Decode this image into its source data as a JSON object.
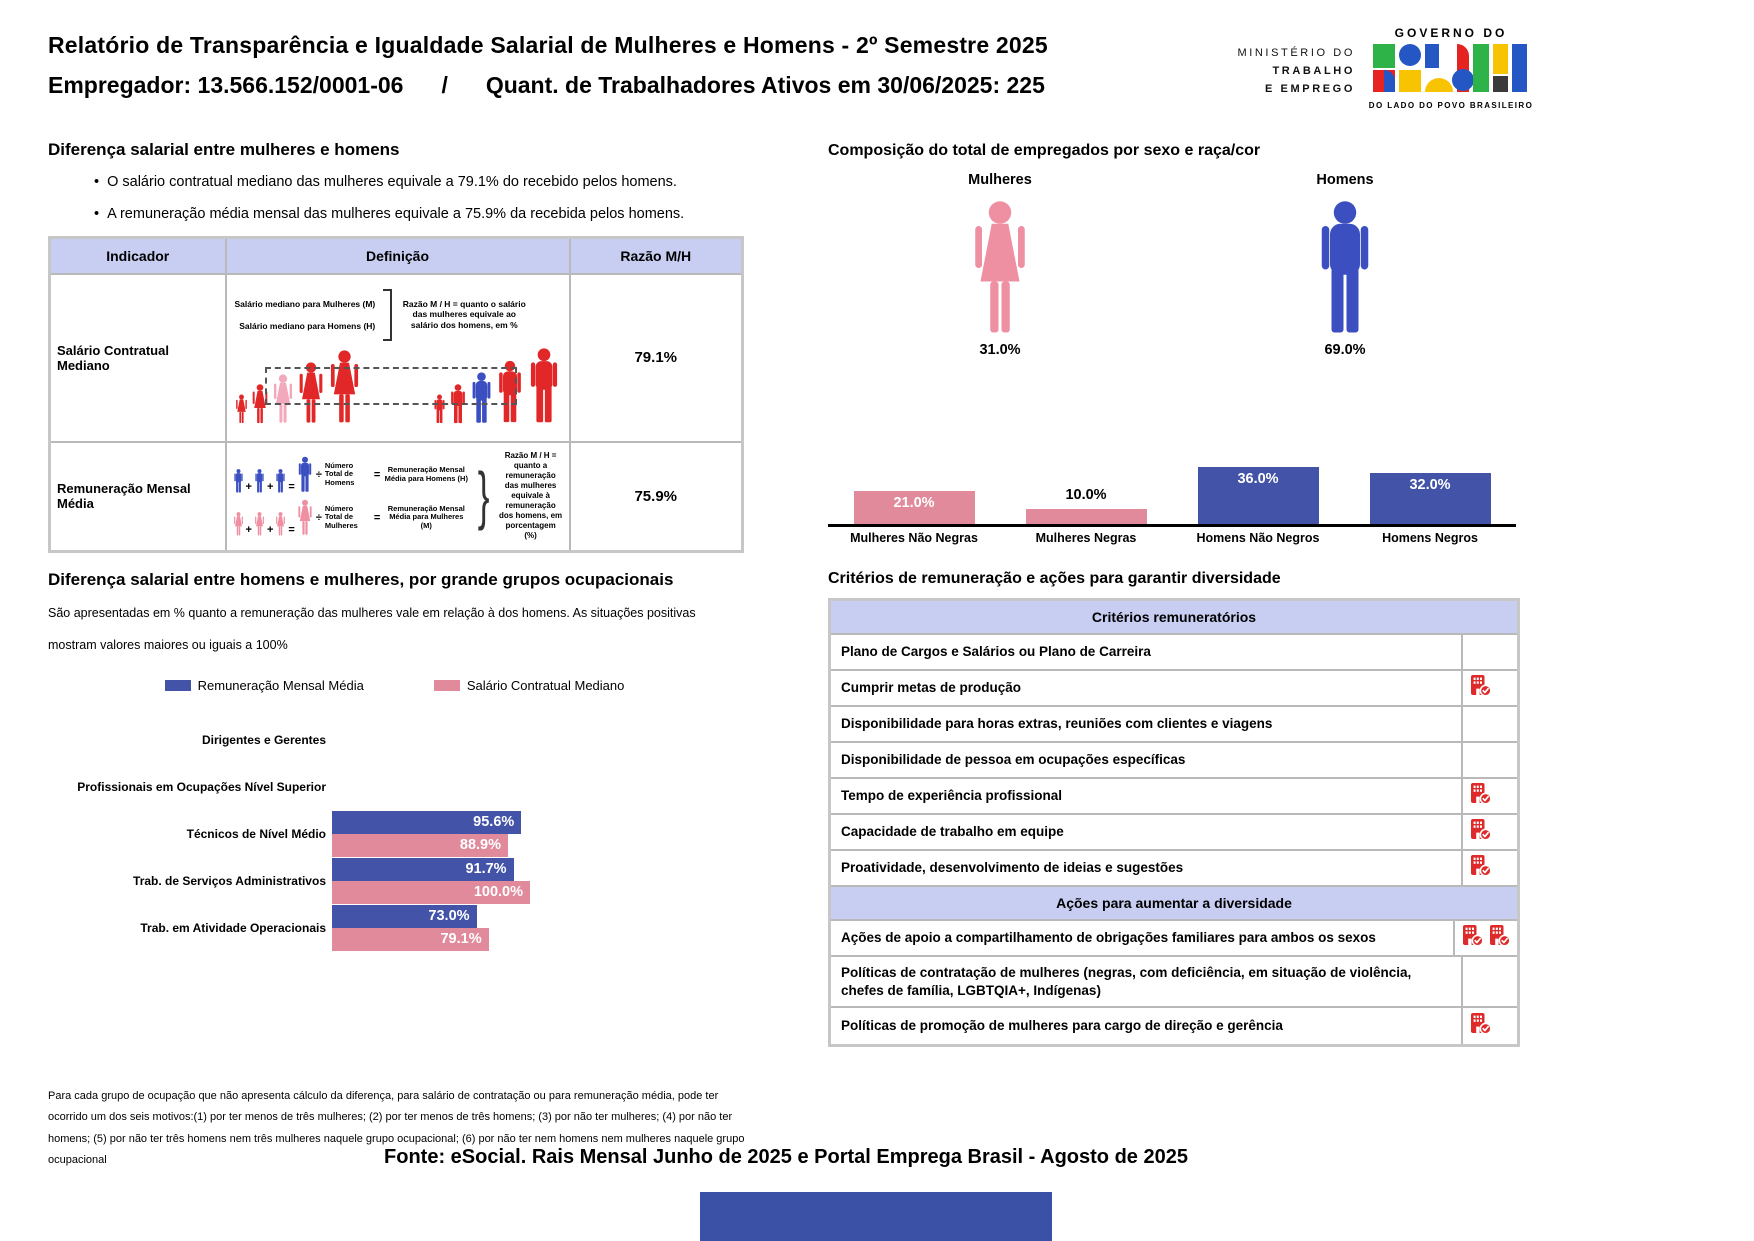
{
  "header": {
    "title": "Relatório de Transparência e Igualdade Salarial de Mulheres e Homens - 2º Semestre 2025",
    "employer": "Empregador: 13.566.152/0001-06",
    "separator": "/",
    "active_workers": "Quant. de Trabalhadores Ativos em 30/06/2025: 225",
    "ministry_line1": "MINISTÉRIO DO",
    "ministry_line2": "TRABALHO",
    "ministry_line3": "E EMPREGO",
    "gov_top": "GOVERNO DO",
    "gov_name": "BRASIL",
    "gov_tagline": "DO LADO DO POVO BRASILEIRO"
  },
  "salary_diff": {
    "title": "Diferença salarial entre mulheres e homens",
    "bullets": [
      "O salário contratual mediano das mulheres equivale a 79.1% do recebido pelos homens.",
      "A remuneração média mensal das mulheres equivale a 75.9% da recebida pelos homens."
    ],
    "table": {
      "headers": [
        "Indicador",
        "Definição",
        "Razão M/H"
      ],
      "rows": [
        {
          "indicator": "Salário Contratual Mediano",
          "ratio": "79.1%"
        },
        {
          "indicator": "Remuneração Mensal Média",
          "ratio": "75.9%"
        }
      ]
    },
    "diagram1": {
      "label_women": "Salário mediano para Mulheres (M)",
      "label_men": "Salário mediano para Homens (H)",
      "note": "Razão M / H = quanto o salário das mulheres equivale ao salário dos homens, em %"
    },
    "diagram2": {
      "plus": "+",
      "equals": "=",
      "divide": "÷",
      "num_men": "Número Total de Homens",
      "rem_men": "Remuneração Mensal Média para Homens (H)",
      "num_women": "Número Total de Mulheres",
      "rem_women": "Remuneração Mensal Média para Mulheres (M)",
      "note": "Razão M / H = quanto a remuneração das mulheres equivale à remuneração dos homens, em porcentagem (%)"
    }
  },
  "composition": {
    "title": "Composição do total de empregados por sexo e raça/cor",
    "groups": [
      {
        "label": "Mulheres",
        "pct": "31.0%"
      },
      {
        "label": "Homens",
        "pct": "69.0%"
      }
    ]
  },
  "occupational": {
    "title": "Diferença salarial entre homens e mulheres, por grande grupos ocupacionais",
    "subtitle_line1": "São apresentadas em % quanto a remuneração das mulheres vale em relação à dos homens. As situações positivas",
    "subtitle_line2": "mostram valores maiores ou iguais a 100%",
    "footnote": "Para cada grupo de ocupação que não apresenta cálculo da diferença, para salário de contratação ou para remuneração média, pode ter ocorrido um dos seis motivos:(1) por ter menos de três mulheres; (2) por ter menos de três homens; (3) por não ter mulheres; (4) por não ter homens; (5) por não ter três homens nem três mulheres naquele grupo ocupacional; (6) por não ter nem homens nem mulheres naquele grupo ocupacional"
  },
  "criteria": {
    "title": "Critérios de remuneração e ações para garantir diversidade",
    "sections": [
      {
        "header": "Critérios remuneratórios",
        "rows": [
          {
            "label": "Plano de Cargos e Salários ou Plano de Carreira",
            "icons": 0
          },
          {
            "label": "Cumprir metas de produção",
            "icons": 1
          },
          {
            "label": "Disponibilidade para horas extras, reuniões com clientes e viagens",
            "icons": 0
          },
          {
            "label": "Disponibilidade de pessoa em ocupações específicas",
            "icons": 0
          },
          {
            "label": "Tempo de experiência profissional",
            "icons": 1
          },
          {
            "label": "Capacidade de trabalho em equipe",
            "icons": 1
          },
          {
            "label": "Proatividade, desenvolvimento de ideias e sugestões",
            "icons": 1
          }
        ]
      },
      {
        "header": "Ações para aumentar a diversidade",
        "rows": [
          {
            "label": "Ações de apoio a compartilhamento de obrigações familiares para ambos os sexos",
            "icons": 2
          },
          {
            "label": "Políticas de contratação de mulheres (negras, com deficiência, em situação de violência, chefes de família, LGBTQIA+, Indígenas)",
            "icons": 0
          },
          {
            "label": "Políticas de promoção de mulheres para cargo de direção e gerência",
            "icons": 1
          }
        ]
      }
    ]
  },
  "footer": {
    "source": "Fonte: eSocial. Rais Mensal Junho de 2025 e Portal Emprega Brasil - Agosto de 2025"
  },
  "colors": {
    "bar_blue": "#4253a8",
    "bar_pink": "#e18a9b",
    "person_pink": "#ee8fa2",
    "person_blue": "#3b4fc1",
    "figure_red": "#e12727",
    "figure_pink_highlight": "#f2a9bc",
    "icon_red": "#de2a2a",
    "header_lavender": "#c8cdf2",
    "footer_bar_blue": "#3b51a5"
  },
  "chart_data": [
    {
      "type": "bar",
      "title": "Composição do total de empregados por sexo e raça/cor",
      "categories": [
        "Mulheres Não Negras",
        "Mulheres Negras",
        "Homens Não Negros",
        "Homens Negros"
      ],
      "values": [
        21.0,
        10.0,
        36.0,
        32.0
      ],
      "colors": [
        "#e18a9b",
        "#e18a9b",
        "#4253a8",
        "#4253a8"
      ],
      "unit": "%",
      "gender_totals": {
        "Mulheres": 31.0,
        "Homens": 69.0
      },
      "grid": false,
      "legend": "none",
      "value_labels": "on-bar"
    },
    {
      "type": "bar",
      "orientation": "horizontal",
      "title": "Diferença salarial entre homens e mulheres, por grande grupos ocupacionais",
      "categories": [
        "Dirigentes e Gerentes",
        "Profissionais em Ocupações Nível Superior",
        "Técnicos de Nível Médio",
        "Trab. de Serviços Administrativos",
        "Trab. em Atividade Operacionais"
      ],
      "series": [
        {
          "name": "Remuneração Mensal Média",
          "color": "#4253a8",
          "values": [
            null,
            null,
            95.6,
            91.7,
            73.0
          ]
        },
        {
          "name": "Salário Contratual Mediano",
          "color": "#e18a9b",
          "values": [
            null,
            null,
            88.9,
            100.0,
            79.1
          ]
        }
      ],
      "unit": "%",
      "grid": false,
      "legend_position": "top",
      "value_labels": "inside-end"
    }
  ]
}
